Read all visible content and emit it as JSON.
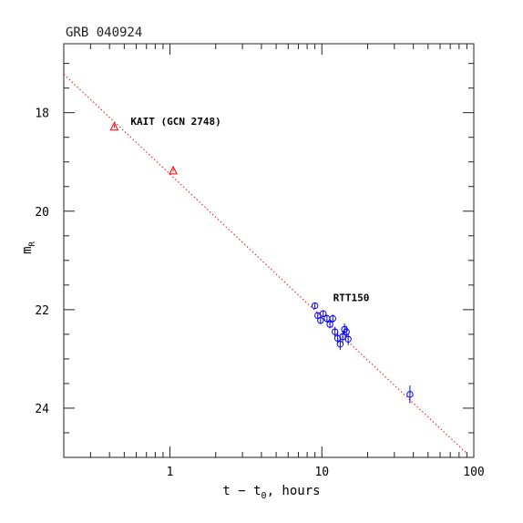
{
  "chart_data": {
    "type": "scatter",
    "title": "GRB 040924",
    "xlabel": {
      "pre": "t − t",
      "sub": "0",
      "post": ", hours"
    },
    "ylabel": {
      "main": "m",
      "sub": "R"
    },
    "x_scale": "log",
    "xlim": [
      0.2,
      100
    ],
    "ylim": [
      25.0,
      16.6
    ],
    "x_ticks": [
      {
        "value": 1,
        "label": "1"
      },
      {
        "value": 10,
        "label": "10"
      },
      {
        "value": 100,
        "label": "100"
      }
    ],
    "y_ticks": [
      {
        "value": 18,
        "label": "18"
      },
      {
        "value": 20,
        "label": "20"
      },
      {
        "value": 22,
        "label": "22"
      },
      {
        "value": 24,
        "label": "24"
      }
    ],
    "grid": false,
    "fit_line": {
      "color": "#ff0000",
      "points": [
        [
          0.2,
          17.22
        ],
        [
          90,
          24.92
        ]
      ]
    },
    "series": [
      {
        "name": "KAIT (GCN 2748)",
        "marker": "triangle",
        "color": "#ff0000",
        "points": [
          {
            "x": 0.43,
            "y": 18.28,
            "yerr": 0.03
          },
          {
            "x": 1.05,
            "y": 19.17,
            "yerr": 0.03
          }
        ]
      },
      {
        "name": "RTT150",
        "marker": "circle",
        "color": "#0000ff",
        "points": [
          {
            "x": 9.0,
            "y": 21.92,
            "yerr": 0.06
          },
          {
            "x": 9.4,
            "y": 22.12,
            "yerr": 0.07
          },
          {
            "x": 9.8,
            "y": 22.22,
            "yerr": 0.07
          },
          {
            "x": 10.2,
            "y": 22.08,
            "yerr": 0.07
          },
          {
            "x": 10.8,
            "y": 22.18,
            "yerr": 0.08
          },
          {
            "x": 11.3,
            "y": 22.3,
            "yerr": 0.08
          },
          {
            "x": 11.8,
            "y": 22.18,
            "yerr": 0.08
          },
          {
            "x": 12.2,
            "y": 22.45,
            "yerr": 0.1
          },
          {
            "x": 12.7,
            "y": 22.58,
            "yerr": 0.1
          },
          {
            "x": 13.2,
            "y": 22.7,
            "yerr": 0.12
          },
          {
            "x": 13.7,
            "y": 22.55,
            "yerr": 0.12
          },
          {
            "x": 14.1,
            "y": 22.4,
            "yerr": 0.12
          },
          {
            "x": 14.5,
            "y": 22.45,
            "yerr": 0.12
          },
          {
            "x": 14.9,
            "y": 22.6,
            "yerr": 0.12
          },
          {
            "x": 38.0,
            "y": 23.72,
            "yerr": 0.18
          }
        ]
      }
    ],
    "annotations": [
      {
        "text": "KAIT (GCN 2748)",
        "series": "KAIT (GCN 2748)"
      },
      {
        "text": "RTT150",
        "series": "RTT150"
      }
    ]
  }
}
